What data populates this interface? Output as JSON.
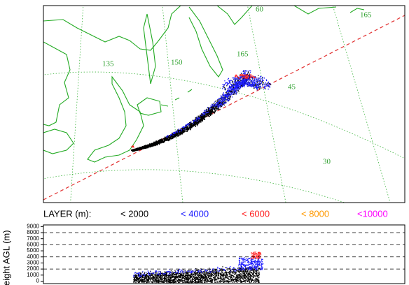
{
  "map": {
    "labels": [
      "60",
      "165",
      "135",
      "150",
      "165",
      "45",
      "30"
    ]
  },
  "legend": {
    "title": "LAYER (m):",
    "items": [
      {
        "label": "< 2000",
        "color": "#000000"
      },
      {
        "label": "< 4000",
        "color": "#1a1aff"
      },
      {
        "label": "< 6000",
        "color": "#ff2020"
      },
      {
        "label": "< 8000",
        "color": "#ff9900"
      },
      {
        "label": "<10000",
        "color": "#ff00ff"
      }
    ]
  },
  "height_panel": {
    "axis_label": "Height AGL (m)",
    "ylim": [
      0,
      9500
    ],
    "yticks": [
      0,
      1000,
      2000,
      3000,
      4000,
      5000,
      6000,
      7000,
      8000,
      9000
    ]
  }
}
